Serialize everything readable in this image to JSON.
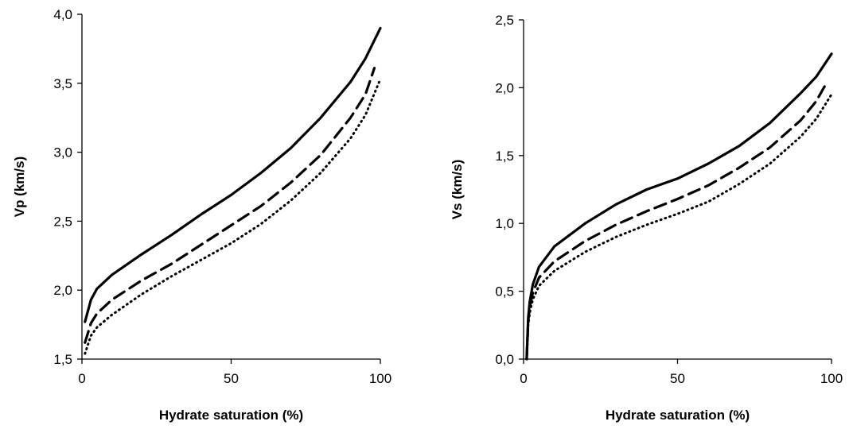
{
  "chart_data": [
    {
      "type": "line",
      "title": "",
      "xlabel": "Hydrate saturation (%)",
      "ylabel": "Vp (km/s)",
      "xlim": [
        0,
        100
      ],
      "ylim": [
        1.5,
        4.0
      ],
      "xticks": [
        "0",
        "50",
        "100"
      ],
      "yticks": [
        "1,5",
        "2,0",
        "2,5",
        "3,0",
        "3,5",
        "4,0"
      ],
      "grid": false,
      "series": [
        {
          "style": "solid",
          "color": "#000000",
          "x": [
            1,
            3,
            5,
            10,
            20,
            30,
            40,
            50,
            60,
            70,
            80,
            90,
            95,
            100
          ],
          "y": [
            1.77,
            1.93,
            2.01,
            2.11,
            2.26,
            2.4,
            2.55,
            2.69,
            2.85,
            3.03,
            3.25,
            3.51,
            3.68,
            3.9
          ]
        },
        {
          "style": "dashed",
          "color": "#000000",
          "x": [
            1,
            3,
            5,
            10,
            20,
            30,
            40,
            50,
            60,
            70,
            80,
            90,
            95,
            98
          ],
          "y": [
            1.62,
            1.76,
            1.83,
            1.93,
            2.07,
            2.19,
            2.33,
            2.47,
            2.61,
            2.78,
            2.98,
            3.25,
            3.42,
            3.61
          ]
        },
        {
          "style": "dotted",
          "color": "#000000",
          "x": [
            1,
            3,
            5,
            10,
            20,
            30,
            40,
            50,
            60,
            70,
            80,
            90,
            95,
            100
          ],
          "y": [
            1.54,
            1.67,
            1.73,
            1.82,
            1.97,
            2.1,
            2.22,
            2.34,
            2.48,
            2.65,
            2.85,
            3.1,
            3.27,
            3.53
          ]
        }
      ]
    },
    {
      "type": "line",
      "title": "",
      "xlabel": "Hydrate saturation (%)",
      "ylabel": "Vs (km/s)",
      "xlim": [
        0,
        100
      ],
      "ylim": [
        0.0,
        2.5
      ],
      "xticks": [
        "0",
        "50",
        "100"
      ],
      "yticks": [
        "0,0",
        "0,5",
        "1,0",
        "1,5",
        "2,0",
        "2,5"
      ],
      "grid": false,
      "series": [
        {
          "style": "solid",
          "color": "#000000",
          "x": [
            1,
            1.5,
            2,
            3,
            5,
            10,
            20,
            30,
            40,
            50,
            60,
            70,
            80,
            90,
            95,
            100
          ],
          "y": [
            0.0,
            0.3,
            0.42,
            0.55,
            0.68,
            0.83,
            1.0,
            1.14,
            1.25,
            1.33,
            1.44,
            1.57,
            1.74,
            1.96,
            2.08,
            2.25
          ]
        },
        {
          "style": "dashed",
          "color": "#000000",
          "x": [
            1,
            1.5,
            2,
            3,
            5,
            10,
            20,
            30,
            40,
            50,
            60,
            70,
            80,
            90,
            95,
            98
          ],
          "y": [
            0.0,
            0.28,
            0.38,
            0.49,
            0.6,
            0.72,
            0.87,
            0.99,
            1.09,
            1.18,
            1.28,
            1.41,
            1.56,
            1.76,
            1.9,
            2.02
          ]
        },
        {
          "style": "dotted",
          "color": "#000000",
          "x": [
            1,
            1.5,
            2,
            3,
            5,
            10,
            20,
            30,
            40,
            50,
            60,
            70,
            80,
            90,
            95,
            100
          ],
          "y": [
            0.0,
            0.25,
            0.34,
            0.44,
            0.54,
            0.65,
            0.79,
            0.9,
            0.99,
            1.07,
            1.16,
            1.29,
            1.44,
            1.64,
            1.77,
            1.95
          ]
        }
      ]
    }
  ]
}
